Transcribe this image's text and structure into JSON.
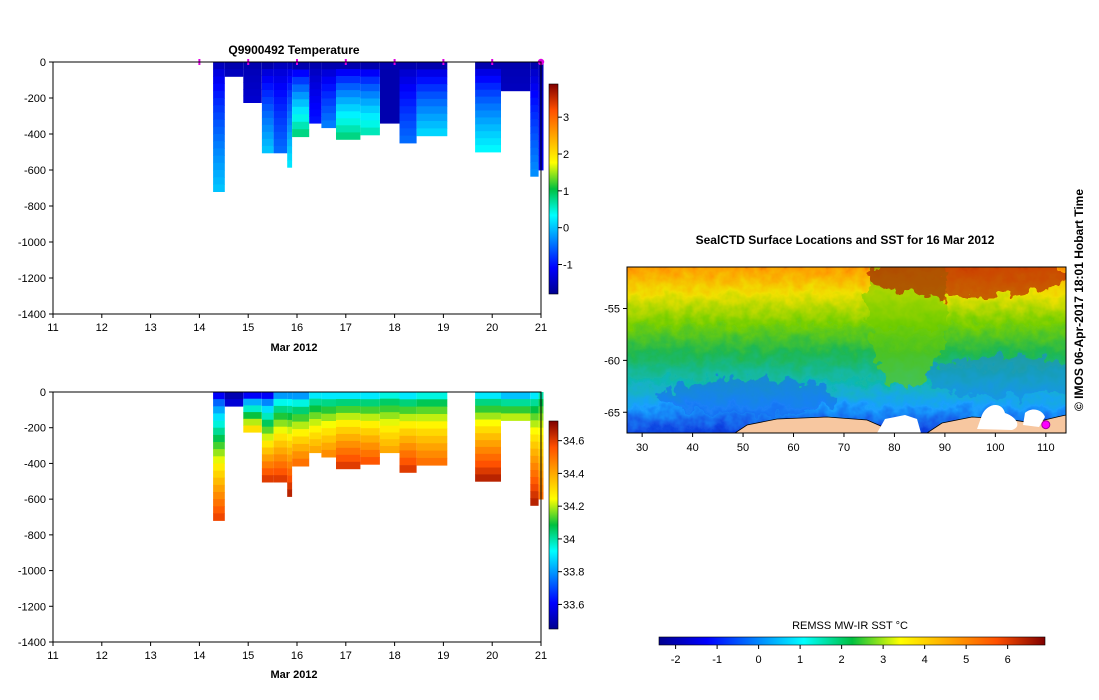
{
  "chart_data": [
    {
      "type": "heatmap",
      "title": "Q9900492  Temperature",
      "xlabel": "Mar 2012",
      "ylabel": "",
      "variable": "temperature",
      "xlim": [
        11,
        21
      ],
      "ylim": [
        -1400,
        0
      ],
      "x_ticks": [
        11,
        12,
        13,
        14,
        15,
        16,
        17,
        18,
        19,
        20,
        21
      ],
      "y_ticks": [
        0,
        -200,
        -400,
        -600,
        -800,
        -1000,
        -1200,
        -1400
      ],
      "colorbar": {
        "ticks": [
          3,
          2,
          1,
          0,
          -1
        ],
        "range": [
          -1.8,
          3.9
        ],
        "palette": "jet"
      },
      "surface_markers": [
        14.0,
        15.0,
        16.0,
        17.0,
        18.0,
        19.0,
        20.0,
        21.0
      ],
      "profiles": [
        {
          "x0": 14.28,
          "x1": 14.52,
          "max_depth": 720,
          "surface": -1.5,
          "deep": 0.0
        },
        {
          "x0": 14.52,
          "x1": 14.9,
          "max_depth": 80,
          "surface": -1.6,
          "deep": -1.5
        },
        {
          "x0": 14.9,
          "x1": 15.28,
          "max_depth": 225,
          "surface": -1.6,
          "deep": -1.4
        },
        {
          "x0": 15.28,
          "x1": 15.52,
          "max_depth": 505,
          "surface": -1.6,
          "deep": 0.0
        },
        {
          "x0": 15.52,
          "x1": 15.8,
          "max_depth": 505,
          "surface": -1.5,
          "deep": -0.5
        },
        {
          "x0": 15.8,
          "x1": 15.9,
          "max_depth": 585,
          "surface": -1.5,
          "deep": 0.2
        },
        {
          "x0": 15.9,
          "x1": 16.25,
          "max_depth": 415,
          "surface": -1.6,
          "deep": 0.8
        },
        {
          "x0": 16.25,
          "x1": 16.5,
          "max_depth": 340,
          "surface": -1.6,
          "deep": -1.0
        },
        {
          "x0": 16.5,
          "x1": 16.8,
          "max_depth": 365,
          "surface": -1.6,
          "deep": -0.4
        },
        {
          "x0": 16.8,
          "x1": 17.3,
          "max_depth": 430,
          "surface": -1.6,
          "deep": 0.8
        },
        {
          "x0": 17.3,
          "x1": 17.7,
          "max_depth": 405,
          "surface": -1.6,
          "deep": 0.6
        },
        {
          "x0": 17.7,
          "x1": 18.1,
          "max_depth": 340,
          "surface": -1.6,
          "deep": -1.6
        },
        {
          "x0": 18.1,
          "x1": 18.45,
          "max_depth": 450,
          "surface": -1.6,
          "deep": -0.5
        },
        {
          "x0": 18.45,
          "x1": 19.08,
          "max_depth": 410,
          "surface": -1.6,
          "deep": 0.1
        },
        {
          "x0": 19.65,
          "x1": 20.18,
          "max_depth": 500,
          "surface": -1.6,
          "deep": 0.3
        },
        {
          "x0": 20.18,
          "x1": 20.78,
          "max_depth": 160,
          "surface": -1.6,
          "deep": -1.5
        },
        {
          "x0": 20.78,
          "x1": 20.95,
          "max_depth": 635,
          "surface": -1.6,
          "deep": -0.3
        },
        {
          "x0": 20.95,
          "x1": 21.05,
          "max_depth": 600,
          "surface": -1.6,
          "deep": -1.2
        }
      ]
    },
    {
      "type": "heatmap",
      "title": "",
      "xlabel": "Mar 2012",
      "ylabel": "",
      "variable": "salinity",
      "xlim": [
        11,
        21
      ],
      "ylim": [
        -1400,
        0
      ],
      "x_ticks": [
        11,
        12,
        13,
        14,
        15,
        16,
        17,
        18,
        19,
        20,
        21
      ],
      "y_ticks": [
        0,
        -200,
        -400,
        -600,
        -800,
        -1000,
        -1200,
        -1400
      ],
      "colorbar": {
        "ticks": [
          34.6,
          34.4,
          34.2,
          34,
          33.8,
          33.6
        ],
        "range": [
          33.45,
          34.72
        ],
        "palette": "jet"
      },
      "profiles": [
        {
          "x0": 14.28,
          "x1": 14.52,
          "max_depth": 720,
          "surface": 33.6,
          "deep": 34.58
        },
        {
          "x0": 14.52,
          "x1": 14.9,
          "max_depth": 80,
          "surface": 33.5,
          "deep": 33.55
        },
        {
          "x0": 14.9,
          "x1": 15.28,
          "max_depth": 225,
          "surface": 33.6,
          "deep": 34.3
        },
        {
          "x0": 15.28,
          "x1": 15.52,
          "max_depth": 505,
          "surface": 33.6,
          "deep": 34.6
        },
        {
          "x0": 15.52,
          "x1": 15.8,
          "max_depth": 505,
          "surface": 33.8,
          "deep": 34.6
        },
        {
          "x0": 15.8,
          "x1": 15.9,
          "max_depth": 585,
          "surface": 33.8,
          "deep": 34.65
        },
        {
          "x0": 15.9,
          "x1": 16.25,
          "max_depth": 415,
          "surface": 33.8,
          "deep": 34.5
        },
        {
          "x0": 16.25,
          "x1": 16.5,
          "max_depth": 340,
          "surface": 33.9,
          "deep": 34.4
        },
        {
          "x0": 16.5,
          "x1": 16.8,
          "max_depth": 365,
          "surface": 33.9,
          "deep": 34.45
        },
        {
          "x0": 16.8,
          "x1": 17.3,
          "max_depth": 430,
          "surface": 33.9,
          "deep": 34.6
        },
        {
          "x0": 17.3,
          "x1": 17.7,
          "max_depth": 405,
          "surface": 33.9,
          "deep": 34.55
        },
        {
          "x0": 17.7,
          "x1": 18.1,
          "max_depth": 340,
          "surface": 33.95,
          "deep": 34.4
        },
        {
          "x0": 18.1,
          "x1": 18.45,
          "max_depth": 450,
          "surface": 33.9,
          "deep": 34.6
        },
        {
          "x0": 18.45,
          "x1": 19.08,
          "max_depth": 410,
          "surface": 33.95,
          "deep": 34.5
        },
        {
          "x0": 19.65,
          "x1": 20.18,
          "max_depth": 500,
          "surface": 33.9,
          "deep": 34.65
        },
        {
          "x0": 20.18,
          "x1": 20.78,
          "max_depth": 160,
          "surface": 33.85,
          "deep": 34.2
        },
        {
          "x0": 20.78,
          "x1": 20.95,
          "max_depth": 635,
          "surface": 33.9,
          "deep": 34.65
        },
        {
          "x0": 20.95,
          "x1": 21.05,
          "max_depth": 600,
          "surface": 34.0,
          "deep": 34.5
        }
      ]
    },
    {
      "type": "heatmap",
      "title": "SealCTD Surface Locations and SST for 16 Mar 2012",
      "xlabel": "",
      "ylabel": "",
      "variable": "sea surface temperature map",
      "xlim": [
        27,
        114
      ],
      "ylim": [
        -67,
        -51
      ],
      "x_ticks": [
        30,
        40,
        50,
        60,
        70,
        80,
        90,
        100,
        110
      ],
      "y_ticks": [
        -55,
        -60,
        -65
      ],
      "station": {
        "lon": 110,
        "lat": -66.2
      },
      "colorbar": {
        "label": "REMSS MW-IR SST °C",
        "ticks": [
          -2,
          -1,
          0,
          1,
          2,
          3,
          4,
          5,
          6
        ],
        "range": [
          -2.4,
          6.9
        ],
        "palette": "jet"
      }
    }
  ],
  "credit": "© IMOS 06-Apr-2017 18:01 Hobart Time"
}
